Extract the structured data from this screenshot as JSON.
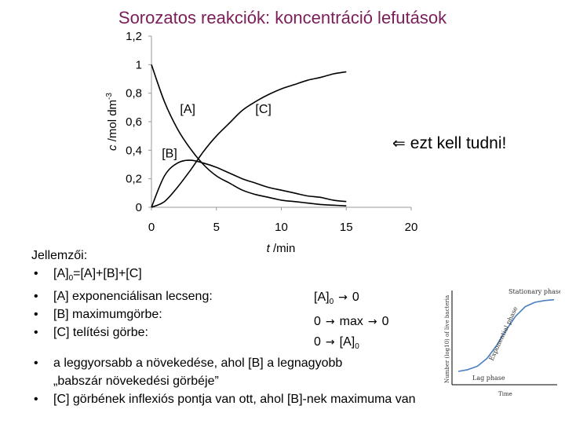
{
  "title": "Sorozatos reakciók: koncentráció lefutások",
  "note": {
    "arrow": "⇐",
    "text": "ezt kell tudni!"
  },
  "properties": {
    "heading": "Jellemzői:",
    "sum_prefix": "[A]",
    "sum_sub": "0",
    "sum_suffix": "=[A]+[B]+[C]",
    "items": [
      {
        "label": "[A] exponenciálisan lecseng:"
      },
      {
        "label": "[B] maximumgörbe:"
      },
      {
        "label": "[C] telítési görbe:"
      }
    ],
    "values": {
      "a_start": "[A]",
      "a_start_sub": "0",
      "a_end": "0",
      "b_start": "0",
      "b_mid": "max",
      "b_end": "0",
      "c_start": "0",
      "c_end": "[A]",
      "c_end_sub": "0"
    },
    "notes": [
      {
        "text": "a leggyorsabb a növekedése, ahol [B] a legnagyobb"
      },
      {
        "text": "„babszár növekedési görbéje”"
      },
      {
        "text": "[C] görbének inflexiós pontja van ott, ahol [B]-nek maximuma van"
      }
    ]
  },
  "chart_data": [
    {
      "type": "line",
      "title": "",
      "xlabel": "t /min",
      "ylabel": "c /mol dm",
      "ylabel_sup": "-3",
      "xlim": [
        0,
        20
      ],
      "ylim": [
        0,
        1.2
      ],
      "xticks": [
        "0",
        "5",
        "10",
        "15",
        "20"
      ],
      "xtick_values": [
        0,
        5,
        10,
        15,
        20
      ],
      "yticks": [
        "0",
        "0,2",
        "0,4",
        "0,6",
        "0,8",
        "1",
        "1,2"
      ],
      "ytick_values": [
        0,
        0.2,
        0.4,
        0.6,
        0.8,
        1.0,
        1.2
      ],
      "grid": false,
      "series_color": "#000000",
      "x": [
        0,
        1,
        2,
        3,
        4,
        5,
        6,
        7,
        8,
        9,
        10,
        11,
        12,
        13,
        14,
        15
      ],
      "series": [
        {
          "name": "[A]",
          "values": [
            1.0,
            0.74,
            0.55,
            0.41,
            0.3,
            0.22,
            0.17,
            0.12,
            0.09,
            0.07,
            0.05,
            0.04,
            0.03,
            0.02,
            0.015,
            0.01
          ]
        },
        {
          "name": "[B]",
          "values": [
            0.0,
            0.22,
            0.31,
            0.33,
            0.31,
            0.28,
            0.24,
            0.2,
            0.17,
            0.14,
            0.12,
            0.1,
            0.08,
            0.07,
            0.05,
            0.04
          ]
        },
        {
          "name": "[C]",
          "values": [
            0.0,
            0.04,
            0.14,
            0.26,
            0.39,
            0.5,
            0.59,
            0.68,
            0.74,
            0.79,
            0.83,
            0.86,
            0.89,
            0.91,
            0.935,
            0.95
          ]
        }
      ],
      "series_labels": [
        {
          "text": "[A]",
          "x": 2.2,
          "y": 0.66
        },
        {
          "text": "[B]",
          "x": 0.8,
          "y": 0.35
        },
        {
          "text": "[C]",
          "x": 8.0,
          "y": 0.66
        }
      ]
    },
    {
      "type": "line",
      "title": "",
      "xlabel": "Time",
      "ylabel": "Number (log10) of live bacteria",
      "grid": false,
      "series_color": "#4a7fc0",
      "x": [
        0,
        1,
        2,
        3,
        4,
        5,
        6,
        7,
        8,
        9,
        10
      ],
      "series": [
        {
          "values": [
            0.1,
            0.12,
            0.16,
            0.25,
            0.4,
            0.58,
            0.74,
            0.85,
            0.9,
            0.92,
            0.93
          ]
        }
      ],
      "annotations": [
        {
          "text": "Stationary phase"
        },
        {
          "text": "Exponential phase"
        },
        {
          "text": "Lag phase"
        }
      ]
    }
  ]
}
